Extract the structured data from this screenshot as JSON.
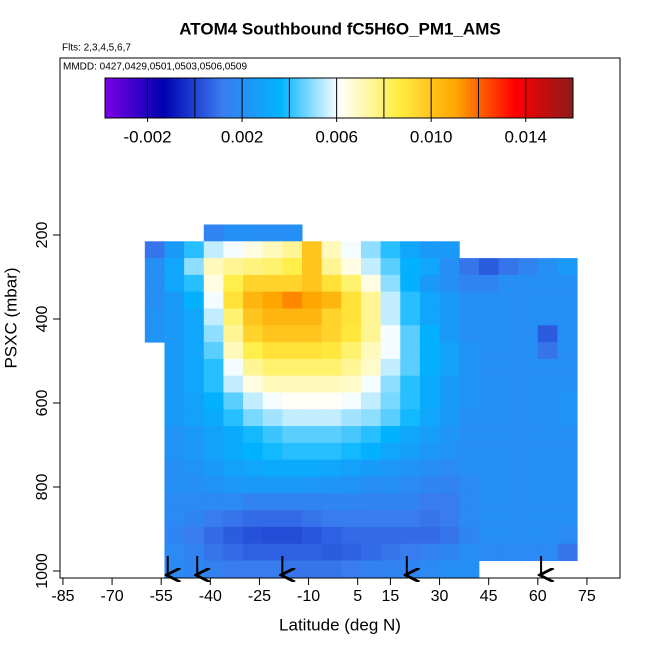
{
  "chart_data": {
    "type": "heatmap",
    "title": "ATOM4 Southbound fC5H6O_PM1_AMS",
    "subtitle": "Flts: 2,3,4,5,6,7",
    "annotation": "MMDD: 0427,0429,0501,0503,0506,0509",
    "x_label": "Latitude (deg N)",
    "y_label": "PSXC (mbar)",
    "xlim": [
      -85.9,
      85.1
    ],
    "xticks": [
      -85,
      -70,
      -55,
      -40,
      -25,
      -10,
      5,
      15,
      30,
      45,
      60,
      75
    ],
    "ylim": [
      1016.7,
      -221.4
    ],
    "yticks": [
      200,
      400,
      600,
      800,
      1000
    ],
    "clim": [
      -0.0038,
      0.016
    ],
    "cticks": [
      -0.002,
      0.002,
      0.006,
      {
        "value": 0.01,
        "label": "0.010"
      },
      0.014
    ],
    "cbar_breaks": [
      -0.002,
      0,
      0.002,
      0.004,
      0.006,
      0.008,
      0.01,
      0.012,
      0.014
    ],
    "colors": [
      "#7b00e6",
      "#0000b0",
      "#3a7bf0",
      "#00b4ff",
      "#ffffff",
      "#ffee44",
      "#ffa500",
      "#ff0000",
      "#8b1a1a"
    ],
    "x_bins": [
      -60,
      -54,
      -48,
      -42,
      -36,
      -30,
      -24,
      -18,
      -12,
      -6,
      0,
      6,
      12,
      18,
      24,
      30,
      36,
      42,
      48,
      54,
      60,
      66,
      72
    ],
    "y_bins": [
      175,
      215,
      255,
      295,
      335,
      375,
      415,
      455,
      495,
      535,
      575,
      615,
      655,
      695,
      735,
      775,
      815,
      855,
      895,
      935,
      975,
      1015
    ],
    "values": [
      [
        null,
        null,
        null,
        0.0015,
        0.002,
        0.002,
        0.002,
        0.002,
        null,
        null,
        null,
        null,
        null,
        null,
        null,
        null,
        null,
        null,
        null,
        null,
        null,
        null
      ],
      [
        0.001,
        0.0025,
        0.004,
        0.0055,
        0.006,
        0.0065,
        0.007,
        0.0075,
        0.01,
        0.007,
        0.006,
        0.005,
        0.004,
        0.003,
        0.0025,
        0.0025,
        null,
        null,
        null,
        null,
        null,
        null
      ],
      [
        0.002,
        0.003,
        0.005,
        0.007,
        0.0075,
        0.0078,
        0.008,
        0.0085,
        0.01,
        0.0075,
        0.0065,
        0.0055,
        0.0045,
        0.0035,
        0.003,
        0.002,
        0.001,
        0.0005,
        0.001,
        0.0015,
        0.002,
        0.0025
      ],
      [
        0.002,
        0.003,
        0.004,
        0.0065,
        0.0085,
        0.0095,
        0.0095,
        0.0095,
        0.01,
        0.009,
        0.008,
        0.0065,
        0.005,
        0.0035,
        0.0025,
        0.002,
        0.0015,
        0.0015,
        0.002,
        0.002,
        0.002,
        0.002
      ],
      [
        0.002,
        0.0025,
        0.0035,
        0.006,
        0.009,
        0.0105,
        0.011,
        0.0115,
        0.011,
        0.0105,
        0.009,
        0.0075,
        0.0055,
        0.004,
        0.003,
        0.0025,
        0.002,
        0.002,
        0.002,
        0.002,
        0.002,
        0.002
      ],
      [
        0.0022,
        0.0025,
        0.003,
        0.0055,
        0.008,
        0.01,
        0.0105,
        0.0105,
        0.0105,
        0.0095,
        0.009,
        0.0075,
        0.0055,
        0.004,
        0.003,
        0.0025,
        0.002,
        0.002,
        0.002,
        0.002,
        0.002,
        0.002
      ],
      [
        0.0022,
        0.0025,
        0.003,
        0.005,
        0.0075,
        0.0095,
        0.01,
        0.01,
        0.01,
        0.0095,
        0.0088,
        0.0075,
        0.006,
        0.0045,
        0.0035,
        0.0025,
        0.002,
        0.002,
        0.002,
        0.002,
        0.0005,
        0.002
      ],
      [
        null,
        0.0025,
        0.003,
        0.0045,
        0.007,
        0.0085,
        0.009,
        0.009,
        0.009,
        0.0088,
        0.008,
        0.007,
        0.006,
        0.0045,
        0.0035,
        0.0028,
        0.0022,
        0.002,
        0.002,
        0.002,
        0.001,
        0.002
      ],
      [
        null,
        0.0025,
        0.003,
        0.004,
        0.006,
        0.0075,
        0.008,
        0.008,
        0.008,
        0.008,
        0.0075,
        0.0068,
        0.0055,
        0.0045,
        0.0035,
        0.0028,
        0.0022,
        0.002,
        0.002,
        0.002,
        0.002,
        0.002
      ],
      [
        null,
        0.0025,
        0.003,
        0.004,
        0.0055,
        0.0065,
        0.007,
        0.007,
        0.007,
        0.007,
        0.0068,
        0.006,
        0.005,
        0.004,
        0.0032,
        0.0026,
        0.0022,
        0.002,
        0.002,
        0.002,
        0.002,
        0.002
      ],
      [
        null,
        0.0025,
        0.0028,
        0.0035,
        0.0045,
        0.0055,
        0.006,
        0.0062,
        0.0062,
        0.0062,
        0.006,
        0.0055,
        0.0048,
        0.004,
        0.0032,
        0.0026,
        0.0022,
        0.002,
        0.002,
        0.002,
        0.002,
        0.0022
      ],
      [
        null,
        0.0025,
        0.0028,
        0.0032,
        0.004,
        0.0048,
        0.0052,
        0.0055,
        0.0055,
        0.0055,
        0.0052,
        0.005,
        0.0045,
        0.0038,
        0.003,
        0.0025,
        0.002,
        0.002,
        0.002,
        0.002,
        0.002,
        0.0022
      ],
      [
        null,
        0.0022,
        0.0025,
        0.0028,
        0.0032,
        0.0038,
        0.0042,
        0.0045,
        0.0045,
        0.0045,
        0.0043,
        0.004,
        0.0036,
        0.003,
        0.0027,
        0.0023,
        0.002,
        0.002,
        0.002,
        0.002,
        0.002,
        0.002
      ],
      [
        null,
        0.0022,
        0.0024,
        0.0028,
        0.0032,
        0.0036,
        0.0038,
        0.004,
        0.004,
        0.004,
        0.0038,
        0.0035,
        0.003,
        0.0027,
        0.0024,
        0.0022,
        0.002,
        0.002,
        0.002,
        0.002,
        0.002,
        0.002
      ],
      [
        null,
        0.002,
        0.0022,
        0.0025,
        0.0028,
        0.003,
        0.0032,
        0.0032,
        0.0032,
        0.003,
        0.0028,
        0.0026,
        0.0024,
        0.0022,
        0.002,
        0.0018,
        0.002,
        0.002,
        0.002,
        0.002,
        0.002,
        0.002
      ],
      [
        null,
        0.002,
        0.002,
        0.0022,
        0.0024,
        0.0025,
        0.0025,
        0.0025,
        0.0024,
        0.0023,
        0.0022,
        0.002,
        0.002,
        0.0018,
        0.0016,
        0.0015,
        0.0018,
        0.002,
        0.002,
        0.002,
        0.002,
        0.002
      ],
      [
        null,
        0.0018,
        0.0018,
        0.0018,
        0.0018,
        0.0015,
        0.0015,
        0.0015,
        0.0015,
        0.0016,
        0.0016,
        0.0015,
        0.0015,
        0.0015,
        0.0012,
        0.0012,
        0.0018,
        0.002,
        0.002,
        0.002,
        0.002,
        0.002
      ],
      [
        null,
        0.0018,
        0.0016,
        0.0012,
        0.001,
        0.0008,
        0.0008,
        0.0008,
        0.001,
        0.0012,
        0.0012,
        0.0012,
        0.0012,
        0.0012,
        0.001,
        0.0012,
        0.0018,
        0.002,
        0.002,
        0.002,
        0.002,
        0.002
      ],
      [
        null,
        0.0016,
        0.0012,
        0.0008,
        0.0005,
        0.0003,
        0.0002,
        0.0002,
        0.0004,
        0.0006,
        0.0008,
        0.0008,
        0.0008,
        0.0008,
        0.0008,
        0.001,
        0.0016,
        0.002,
        0.002,
        0.002,
        0.002,
        0.0018
      ],
      [
        null,
        0.0018,
        0.0015,
        0.001,
        0.0008,
        0.0006,
        0.0006,
        0.0006,
        0.0006,
        0.0005,
        0.0006,
        0.0008,
        0.001,
        0.0012,
        0.0014,
        0.0016,
        0.002,
        0.0018,
        0.0018,
        0.0018,
        0.0018,
        0.001
      ],
      [
        null,
        0.0018,
        0.0016,
        0.0014,
        0.0012,
        0.0012,
        0.0012,
        0.001,
        0.001,
        0.001,
        0.0012,
        0.0014,
        0.0015,
        0.0016,
        0.0018,
        0.002,
        0.002,
        null,
        null,
        null,
        null,
        null
      ]
    ],
    "arrows_x": [
      -53,
      -44,
      -18,
      20,
      61
    ]
  }
}
